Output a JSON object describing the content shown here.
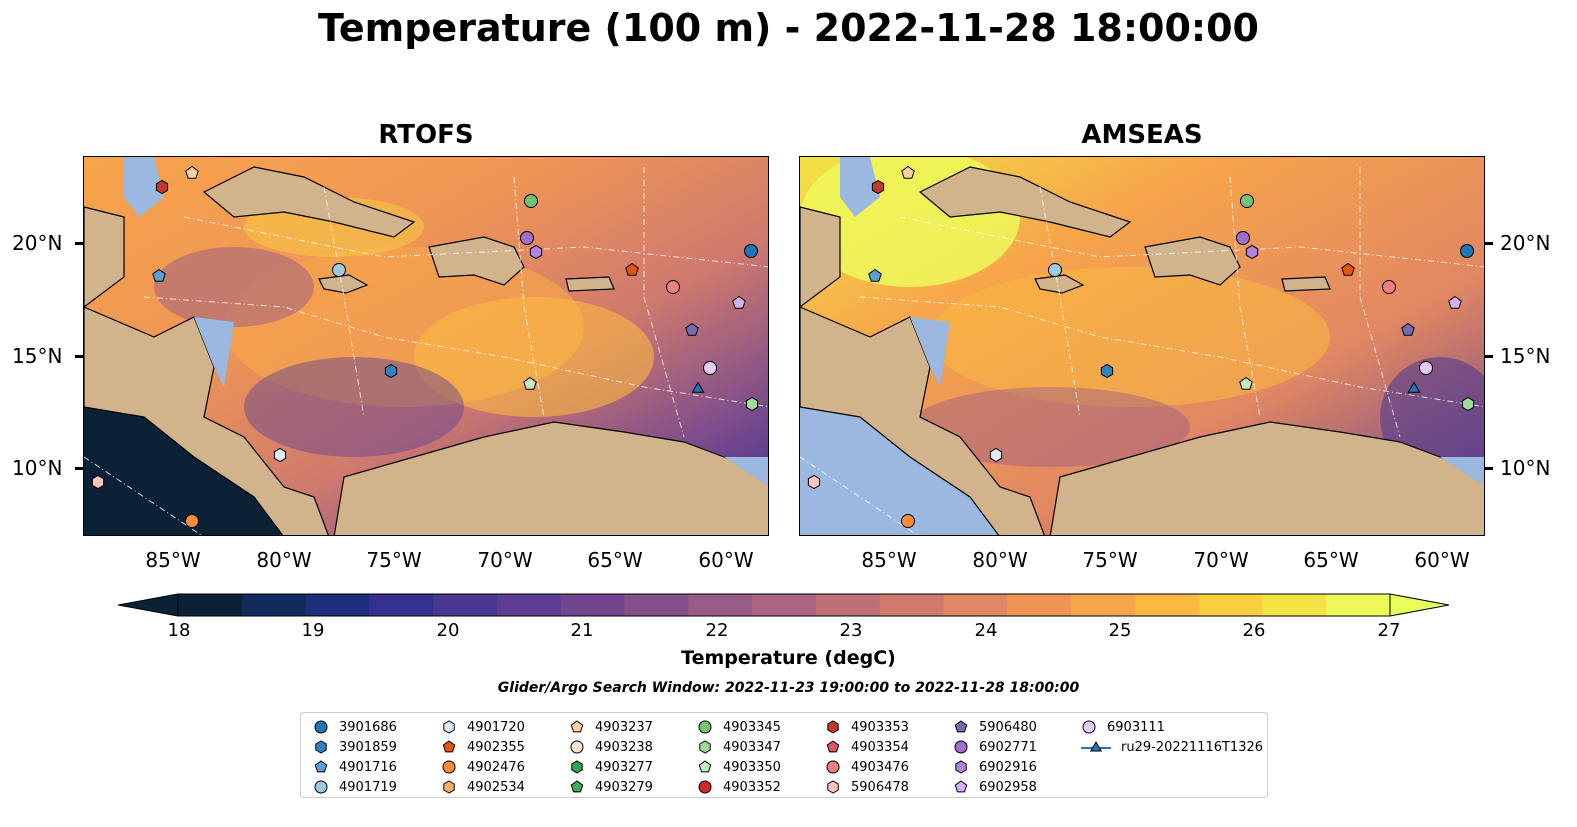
{
  "title": "Temperature (100 m) - 2022-11-28 18:00:00",
  "panels": [
    {
      "title": "RTOFS"
    },
    {
      "title": "AMSEAS"
    }
  ],
  "lat_labels": [
    "20°N",
    "15°N",
    "10°N"
  ],
  "lon_labels": [
    "85°W",
    "80°W",
    "75°W",
    "70°W",
    "65°W",
    "60°W"
  ],
  "colorbar": {
    "ticks": [
      "18",
      "19",
      "20",
      "21",
      "22",
      "23",
      "24",
      "25",
      "26",
      "27"
    ],
    "label": "Temperature (degC)",
    "colors": [
      "#0b2236",
      "#102a5c",
      "#1f2d7d",
      "#33318f",
      "#493792",
      "#5d3d92",
      "#71468f",
      "#84508a",
      "#985b85",
      "#ab6580",
      "#be6f78",
      "#d07a6e",
      "#e18763",
      "#ee9556",
      "#f7a54b",
      "#fbb942",
      "#f9cf40",
      "#f3e445",
      "#eef95a"
    ],
    "under_color": "#0b2236",
    "over_color": "#e8ff5a"
  },
  "search_window": "Glider/Argo Search Window: 2022-11-23 19:00:00 to 2022-11-28 18:00:00",
  "legend": [
    {
      "label": "3901686",
      "marker": "circle",
      "color": "#1f77b4"
    },
    {
      "label": "3901859",
      "marker": "hexagon",
      "color": "#3182bd"
    },
    {
      "label": "4901716",
      "marker": "pentagon",
      "color": "#5aa0d0"
    },
    {
      "label": "4901719",
      "marker": "circle",
      "color": "#9ecae1"
    },
    {
      "label": "4901720",
      "marker": "hexagon",
      "color": "#deebf7"
    },
    {
      "label": "4902355",
      "marker": "pentagon",
      "color": "#e6550d"
    },
    {
      "label": "4902476",
      "marker": "circle",
      "color": "#fd8d3c"
    },
    {
      "label": "4902534",
      "marker": "hexagon",
      "color": "#fdae6b"
    },
    {
      "label": "4903237",
      "marker": "pentagon",
      "color": "#fdd0a2"
    },
    {
      "label": "4903238",
      "marker": "circle",
      "color": "#fee6ce"
    },
    {
      "label": "4903277",
      "marker": "hexagon",
      "color": "#31a354"
    },
    {
      "label": "4903279",
      "marker": "pentagon",
      "color": "#41ab5d"
    },
    {
      "label": "4903345",
      "marker": "circle",
      "color": "#74c476"
    },
    {
      "label": "4903347",
      "marker": "hexagon",
      "color": "#a1d99b"
    },
    {
      "label": "4903350",
      "marker": "pentagon",
      "color": "#c7e9c0"
    },
    {
      "label": "4903352",
      "marker": "circle",
      "color": "#d62728"
    },
    {
      "label": "4903353",
      "marker": "hexagon",
      "color": "#c0392b"
    },
    {
      "label": "4903354",
      "marker": "pentagon",
      "color": "#e05561"
    },
    {
      "label": "4903476",
      "marker": "circle",
      "color": "#f08080"
    },
    {
      "label": "5906478",
      "marker": "hexagon",
      "color": "#fcc5c0"
    },
    {
      "label": "5906480",
      "marker": "pentagon",
      "color": "#756bb1"
    },
    {
      "label": "6902771",
      "marker": "circle",
      "color": "#9e6fcf"
    },
    {
      "label": "6902916",
      "marker": "hexagon",
      "color": "#b084e0"
    },
    {
      "label": "6902958",
      "marker": "pentagon",
      "color": "#d4b0f0"
    },
    {
      "label": "6903111",
      "marker": "circle",
      "color": "#e6ccf7"
    },
    {
      "label": "ru29-20221116T1326",
      "marker": "triangle-line",
      "color": "#1f77b4"
    }
  ]
}
